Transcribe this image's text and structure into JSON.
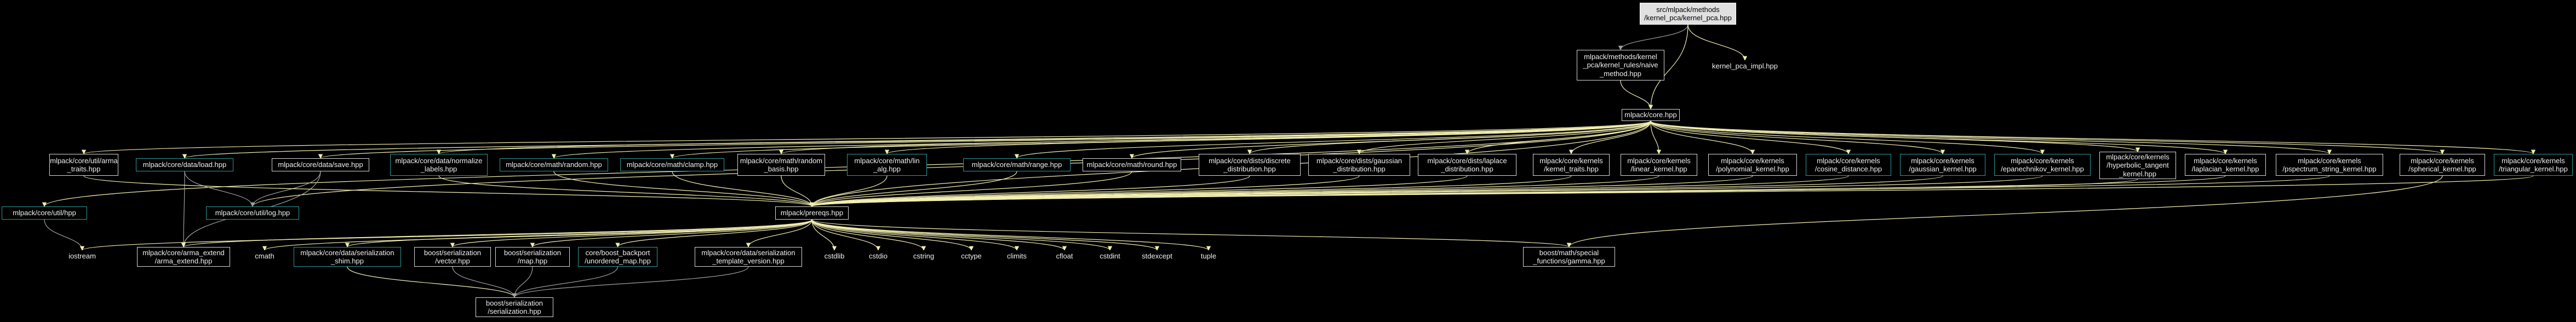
{
  "colors": {
    "background": "#000000",
    "edge_core": "#f2efb0",
    "edge_prereq": "#f2efb0",
    "edge_default": "#a0a0a0",
    "node_border": "#d8d8d8",
    "node_link_border": "#2a9d9d",
    "focus_fill": "#e0e0e0"
  },
  "graph": {
    "nodes": [
      {
        "id": "kernel_pca",
        "label": "src/mlpack/methods\n/kernel_pca/kernel_pca.hpp",
        "style": "focus"
      },
      {
        "id": "naive_method",
        "label": "mlpack/methods/kernel\n_pca/kernel_rules/naive\n_method.hpp",
        "style": "box"
      },
      {
        "id": "kernel_pca_impl",
        "label": "kernel_pca_impl.hpp",
        "style": "plain"
      },
      {
        "id": "core",
        "label": "mlpack/core.hpp",
        "style": "box"
      },
      {
        "id": "arma_traits",
        "label": "mlpack/core/util/arma\n_traits.hpp",
        "style": "box"
      },
      {
        "id": "load",
        "label": "mlpack/core/data/load.hpp",
        "style": "link"
      },
      {
        "id": "save",
        "label": "mlpack/core/data/save.hpp",
        "style": "box"
      },
      {
        "id": "normalize_labels",
        "label": "mlpack/core/data/normalize\n_labels.hpp",
        "style": "link"
      },
      {
        "id": "random",
        "label": "mlpack/core/math/random.hpp",
        "style": "link"
      },
      {
        "id": "clamp",
        "label": "mlpack/core/math/clamp.hpp",
        "style": "link"
      },
      {
        "id": "random_basis",
        "label": "mlpack/core/math/random\n_basis.hpp",
        "style": "box"
      },
      {
        "id": "lin_alg",
        "label": "mlpack/core/math/lin\n_alg.hpp",
        "style": "link"
      },
      {
        "id": "range",
        "label": "mlpack/core/math/range.hpp",
        "style": "link"
      },
      {
        "id": "round",
        "label": "mlpack/core/math/round.hpp",
        "style": "box"
      },
      {
        "id": "discrete",
        "label": "mlpack/core/dists/discrete\n_distribution.hpp",
        "style": "box"
      },
      {
        "id": "gaussian_dist",
        "label": "mlpack/core/dists/gaussian\n_distribution.hpp",
        "style": "box"
      },
      {
        "id": "laplace",
        "label": "mlpack/core/dists/laplace\n_distribution.hpp",
        "style": "box"
      },
      {
        "id": "kernel_traits",
        "label": "mlpack/core/kernels\n/kernel_traits.hpp",
        "style": "box"
      },
      {
        "id": "linear_kernel",
        "label": "mlpack/core/kernels\n/linear_kernel.hpp",
        "style": "box"
      },
      {
        "id": "polynomial_kernel",
        "label": "mlpack/core/kernels\n/polynomial_kernel.hpp",
        "style": "box"
      },
      {
        "id": "cosine_distance",
        "label": "mlpack/core/kernels\n/cosine_distance.hpp",
        "style": "link"
      },
      {
        "id": "gaussian_kernel",
        "label": "mlpack/core/kernels\n/gaussian_kernel.hpp",
        "style": "link"
      },
      {
        "id": "epanechnikov",
        "label": "mlpack/core/kernels\n/epanechnikov_kernel.hpp",
        "style": "link"
      },
      {
        "id": "hyperbolic_tangent",
        "label": "mlpack/core/kernels\n/hyperbolic_tangent\n_kernel.hpp",
        "style": "box"
      },
      {
        "id": "laplacian_kernel",
        "label": "mlpack/core/kernels\n/laplacian_kernel.hpp",
        "style": "box"
      },
      {
        "id": "pspectrum",
        "label": "mlpack/core/kernels\n/pspectrum_string_kernel.hpp",
        "style": "box"
      },
      {
        "id": "spherical_kernel",
        "label": "mlpack/core/kernels\n/spherical_kernel.hpp",
        "style": "box"
      },
      {
        "id": "triangular_kernel",
        "label": "mlpack/core/kernels\n/triangular_kernel.hpp",
        "style": "link"
      },
      {
        "id": "util_log",
        "label": "mlpack/core/util/log.hpp",
        "style": "link"
      },
      {
        "id": "util_hpp",
        "label": "mlpack/core/util/hpp",
        "style": "link"
      },
      {
        "id": "prereqs",
        "label": "mlpack/prereqs.hpp",
        "style": "box"
      },
      {
        "id": "iostream",
        "label": "iostream",
        "style": "plain"
      },
      {
        "id": "arma_extend",
        "label": "mlpack/core/arma_extend\n/arma_extend.hpp",
        "style": "box"
      },
      {
        "id": "cmath",
        "label": "cmath",
        "style": "plain"
      },
      {
        "id": "serialization_shim",
        "label": "mlpack/core/data/serialization\n_shim.hpp",
        "style": "link"
      },
      {
        "id": "boost_vector",
        "label": "boost/serialization\n/vector.hpp",
        "style": "box"
      },
      {
        "id": "boost_map",
        "label": "boost/serialization\n/map.hpp",
        "style": "box"
      },
      {
        "id": "unordered_map",
        "label": "core/boost_backport\n/unordered_map.hpp",
        "style": "link"
      },
      {
        "id": "serialization_template",
        "label": "mlpack/core/data/serialization\n_template_version.hpp",
        "style": "box"
      },
      {
        "id": "cstdlib",
        "label": "cstdlib",
        "style": "plain"
      },
      {
        "id": "cstdio",
        "label": "cstdio",
        "style": "plain"
      },
      {
        "id": "cstring",
        "label": "cstring",
        "style": "plain"
      },
      {
        "id": "cctype",
        "label": "cctype",
        "style": "plain"
      },
      {
        "id": "climits",
        "label": "climits",
        "style": "plain"
      },
      {
        "id": "cfloat",
        "label": "cfloat",
        "style": "plain"
      },
      {
        "id": "cstdint",
        "label": "cstdint",
        "style": "plain"
      },
      {
        "id": "stdexcept",
        "label": "stdexcept",
        "style": "plain"
      },
      {
        "id": "tuple",
        "label": "tuple",
        "style": "plain"
      },
      {
        "id": "boost_gamma",
        "label": "boost/math/special\n_functions/gamma.hpp",
        "style": "box"
      },
      {
        "id": "boost_serialization",
        "label": "boost/serialization\n/serialization.hpp",
        "style": "box"
      }
    ],
    "edges": [
      {
        "from": "kernel_pca",
        "to": "naive_method",
        "kind": "default"
      },
      {
        "from": "kernel_pca",
        "to": "kernel_pca_impl",
        "kind": "core"
      },
      {
        "from": "kernel_pca",
        "to": "core",
        "kind": "core"
      },
      {
        "from": "naive_method",
        "to": "core",
        "kind": "core"
      },
      {
        "from": "core",
        "to": "arma_traits",
        "kind": "core"
      },
      {
        "from": "core",
        "to": "load",
        "kind": "core"
      },
      {
        "from": "core",
        "to": "save",
        "kind": "core"
      },
      {
        "from": "core",
        "to": "normalize_labels",
        "kind": "core"
      },
      {
        "from": "core",
        "to": "random",
        "kind": "core"
      },
      {
        "from": "core",
        "to": "clamp",
        "kind": "core"
      },
      {
        "from": "core",
        "to": "random_basis",
        "kind": "core"
      },
      {
        "from": "core",
        "to": "lin_alg",
        "kind": "core"
      },
      {
        "from": "core",
        "to": "range",
        "kind": "core"
      },
      {
        "from": "core",
        "to": "round",
        "kind": "core"
      },
      {
        "from": "core",
        "to": "discrete",
        "kind": "core"
      },
      {
        "from": "core",
        "to": "gaussian_dist",
        "kind": "core"
      },
      {
        "from": "core",
        "to": "laplace",
        "kind": "core"
      },
      {
        "from": "core",
        "to": "kernel_traits",
        "kind": "core"
      },
      {
        "from": "core",
        "to": "linear_kernel",
        "kind": "core"
      },
      {
        "from": "core",
        "to": "polynomial_kernel",
        "kind": "core"
      },
      {
        "from": "core",
        "to": "cosine_distance",
        "kind": "core"
      },
      {
        "from": "core",
        "to": "gaussian_kernel",
        "kind": "core"
      },
      {
        "from": "core",
        "to": "epanechnikov",
        "kind": "core"
      },
      {
        "from": "core",
        "to": "hyperbolic_tangent",
        "kind": "core"
      },
      {
        "from": "core",
        "to": "laplacian_kernel",
        "kind": "core"
      },
      {
        "from": "core",
        "to": "pspectrum",
        "kind": "core"
      },
      {
        "from": "core",
        "to": "spherical_kernel",
        "kind": "core"
      },
      {
        "from": "core",
        "to": "triangular_kernel",
        "kind": "core"
      },
      {
        "from": "core",
        "to": "util_hpp",
        "kind": "core"
      },
      {
        "from": "core",
        "to": "util_log",
        "kind": "core"
      },
      {
        "from": "core",
        "to": "prereqs",
        "kind": "core"
      },
      {
        "from": "load",
        "to": "util_log",
        "kind": "default"
      },
      {
        "from": "load",
        "to": "arma_extend",
        "kind": "default"
      },
      {
        "from": "save",
        "to": "util_log",
        "kind": "default"
      },
      {
        "from": "save",
        "to": "arma_extend",
        "kind": "default"
      },
      {
        "from": "util_hpp",
        "to": "iostream",
        "kind": "default"
      },
      {
        "from": "arma_traits",
        "to": "prereqs",
        "kind": "core"
      },
      {
        "from": "normalize_labels",
        "to": "prereqs",
        "kind": "prereq"
      },
      {
        "from": "random",
        "to": "prereqs",
        "kind": "prereq"
      },
      {
        "from": "clamp",
        "to": "prereqs",
        "kind": "prereq"
      },
      {
        "from": "random_basis",
        "to": "prereqs",
        "kind": "prereq"
      },
      {
        "from": "lin_alg",
        "to": "prereqs",
        "kind": "prereq"
      },
      {
        "from": "range",
        "to": "prereqs",
        "kind": "prereq"
      },
      {
        "from": "round",
        "to": "prereqs",
        "kind": "prereq"
      },
      {
        "from": "discrete",
        "to": "prereqs",
        "kind": "prereq"
      },
      {
        "from": "gaussian_dist",
        "to": "prereqs",
        "kind": "prereq"
      },
      {
        "from": "laplace",
        "to": "prereqs",
        "kind": "prereq"
      },
      {
        "from": "kernel_traits",
        "to": "prereqs",
        "kind": "prereq"
      },
      {
        "from": "linear_kernel",
        "to": "prereqs",
        "kind": "prereq"
      },
      {
        "from": "polynomial_kernel",
        "to": "prereqs",
        "kind": "prereq"
      },
      {
        "from": "cosine_distance",
        "to": "prereqs",
        "kind": "prereq"
      },
      {
        "from": "gaussian_kernel",
        "to": "prereqs",
        "kind": "prereq"
      },
      {
        "from": "epanechnikov",
        "to": "prereqs",
        "kind": "prereq"
      },
      {
        "from": "hyperbolic_tangent",
        "to": "prereqs",
        "kind": "prereq"
      },
      {
        "from": "laplacian_kernel",
        "to": "prereqs",
        "kind": "prereq"
      },
      {
        "from": "pspectrum",
        "to": "prereqs",
        "kind": "prereq"
      },
      {
        "from": "spherical_kernel",
        "to": "boost_gamma",
        "kind": "prereq"
      },
      {
        "from": "triangular_kernel",
        "to": "prereqs",
        "kind": "prereq"
      },
      {
        "from": "prereqs",
        "to": "iostream",
        "kind": "prereq"
      },
      {
        "from": "prereqs",
        "to": "arma_extend",
        "kind": "prereq"
      },
      {
        "from": "prereqs",
        "to": "cmath",
        "kind": "prereq"
      },
      {
        "from": "prereqs",
        "to": "serialization_shim",
        "kind": "prereq"
      },
      {
        "from": "prereqs",
        "to": "boost_vector",
        "kind": "prereq"
      },
      {
        "from": "prereqs",
        "to": "boost_map",
        "kind": "prereq"
      },
      {
        "from": "prereqs",
        "to": "unordered_map",
        "kind": "prereq"
      },
      {
        "from": "prereqs",
        "to": "serialization_template",
        "kind": "prereq"
      },
      {
        "from": "prereqs",
        "to": "cstdlib",
        "kind": "prereq"
      },
      {
        "from": "prereqs",
        "to": "cstdio",
        "kind": "prereq"
      },
      {
        "from": "prereqs",
        "to": "cstring",
        "kind": "prereq"
      },
      {
        "from": "prereqs",
        "to": "cctype",
        "kind": "prereq"
      },
      {
        "from": "prereqs",
        "to": "climits",
        "kind": "prereq"
      },
      {
        "from": "prereqs",
        "to": "cfloat",
        "kind": "prereq"
      },
      {
        "from": "prereqs",
        "to": "cstdint",
        "kind": "prereq"
      },
      {
        "from": "prereqs",
        "to": "stdexcept",
        "kind": "prereq"
      },
      {
        "from": "prereqs",
        "to": "tuple",
        "kind": "prereq"
      },
      {
        "from": "prereqs",
        "to": "boost_gamma",
        "kind": "prereq"
      },
      {
        "from": "serialization_shim",
        "to": "boost_serialization",
        "kind": "prereq"
      },
      {
        "from": "boost_vector",
        "to": "boost_serialization",
        "kind": "default"
      },
      {
        "from": "boost_map",
        "to": "boost_serialization",
        "kind": "default"
      },
      {
        "from": "unordered_map",
        "to": "boost_serialization",
        "kind": "default"
      },
      {
        "from": "serialization_template",
        "to": "boost_serialization",
        "kind": "default"
      }
    ]
  }
}
